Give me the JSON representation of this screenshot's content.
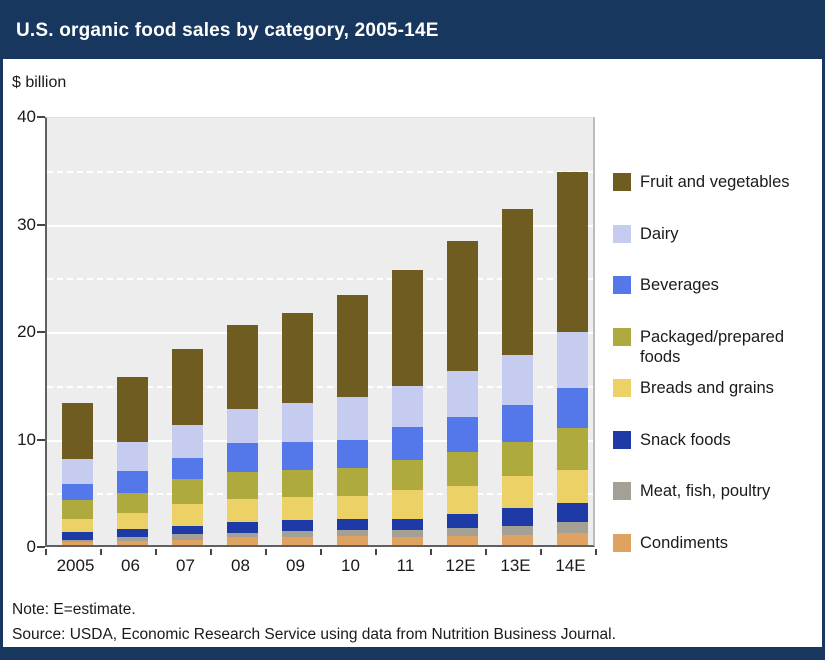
{
  "header": {
    "title": "U.S. organic food sales by category, 2005-14E"
  },
  "chart_data": {
    "type": "bar",
    "stacked": true,
    "title": "U.S. organic food sales by category, 2005-14E",
    "ylabel": "$ billion",
    "xlabel": "",
    "ylim": [
      0,
      40
    ],
    "yticks": [
      0,
      10,
      20,
      30,
      40
    ],
    "yticks_minor": [
      5,
      15,
      25,
      35
    ],
    "grid": "horizontal white lines on gray plot (solid at major ticks, dashed at minor ticks)",
    "legend_position": "right",
    "categories": [
      "2005",
      "06",
      "07",
      "08",
      "09",
      "10",
      "11",
      "12E",
      "13E",
      "14E"
    ],
    "series_order": "bottom-to-top; legend shows reverse order",
    "series": [
      {
        "name": "Condiments",
        "color": "#e0a261",
        "values": [
          0.3,
          0.4,
          0.45,
          0.7,
          0.7,
          0.8,
          0.7,
          0.8,
          0.9,
          1.1
        ]
      },
      {
        "name": "Meat, fish, poultry",
        "color": "#a4a096",
        "values": [
          0.2,
          0.3,
          0.55,
          0.45,
          0.6,
          0.6,
          0.7,
          0.8,
          0.9,
          1.0
        ]
      },
      {
        "name": "Snack foods",
        "color": "#1e3aa6",
        "values": [
          0.7,
          0.8,
          0.8,
          0.95,
          1.0,
          1.05,
          1.0,
          1.3,
          1.6,
          1.8
        ]
      },
      {
        "name": "Breads and grains",
        "color": "#ebd166",
        "values": [
          1.25,
          1.45,
          2.0,
          2.15,
          2.2,
          2.1,
          2.7,
          2.55,
          3.0,
          3.1
        ]
      },
      {
        "name": "Packaged/prepared foods",
        "color": "#aeaa3e",
        "values": [
          1.7,
          1.9,
          2.3,
          2.5,
          2.5,
          2.65,
          2.8,
          3.2,
          3.2,
          3.9
        ]
      },
      {
        "name": "Beverages",
        "color": "#5477e9",
        "values": [
          1.5,
          2.0,
          2.0,
          2.7,
          2.6,
          2.6,
          3.1,
          3.25,
          3.4,
          3.7
        ]
      },
      {
        "name": "Dairy",
        "color": "#c5ccf0",
        "values": [
          2.4,
          2.75,
          3.1,
          3.25,
          3.6,
          4.0,
          3.8,
          4.3,
          4.7,
          5.2
        ]
      },
      {
        "name": "Fruit and vegetables",
        "color": "#6e5c21",
        "values": [
          5.2,
          6.0,
          7.0,
          7.8,
          8.4,
          9.5,
          10.8,
          12.1,
          13.6,
          14.9
        ]
      }
    ],
    "totals": [
      13.25,
      15.6,
      18.2,
      20.5,
      21.6,
      23.3,
      25.6,
      28.3,
      31.3,
      34.7
    ]
  },
  "footer": {
    "note": "Note: E=estimate.",
    "source": "Source: USDA, Economic Research Service using data from Nutrition Business Journal."
  },
  "colors": {
    "header_bg": "#17375e",
    "plot_bg": "#ededed",
    "gridline": "#ffffff",
    "axis": "#606060",
    "text": "#1a1a1a",
    "title_text": "#ffffff"
  }
}
